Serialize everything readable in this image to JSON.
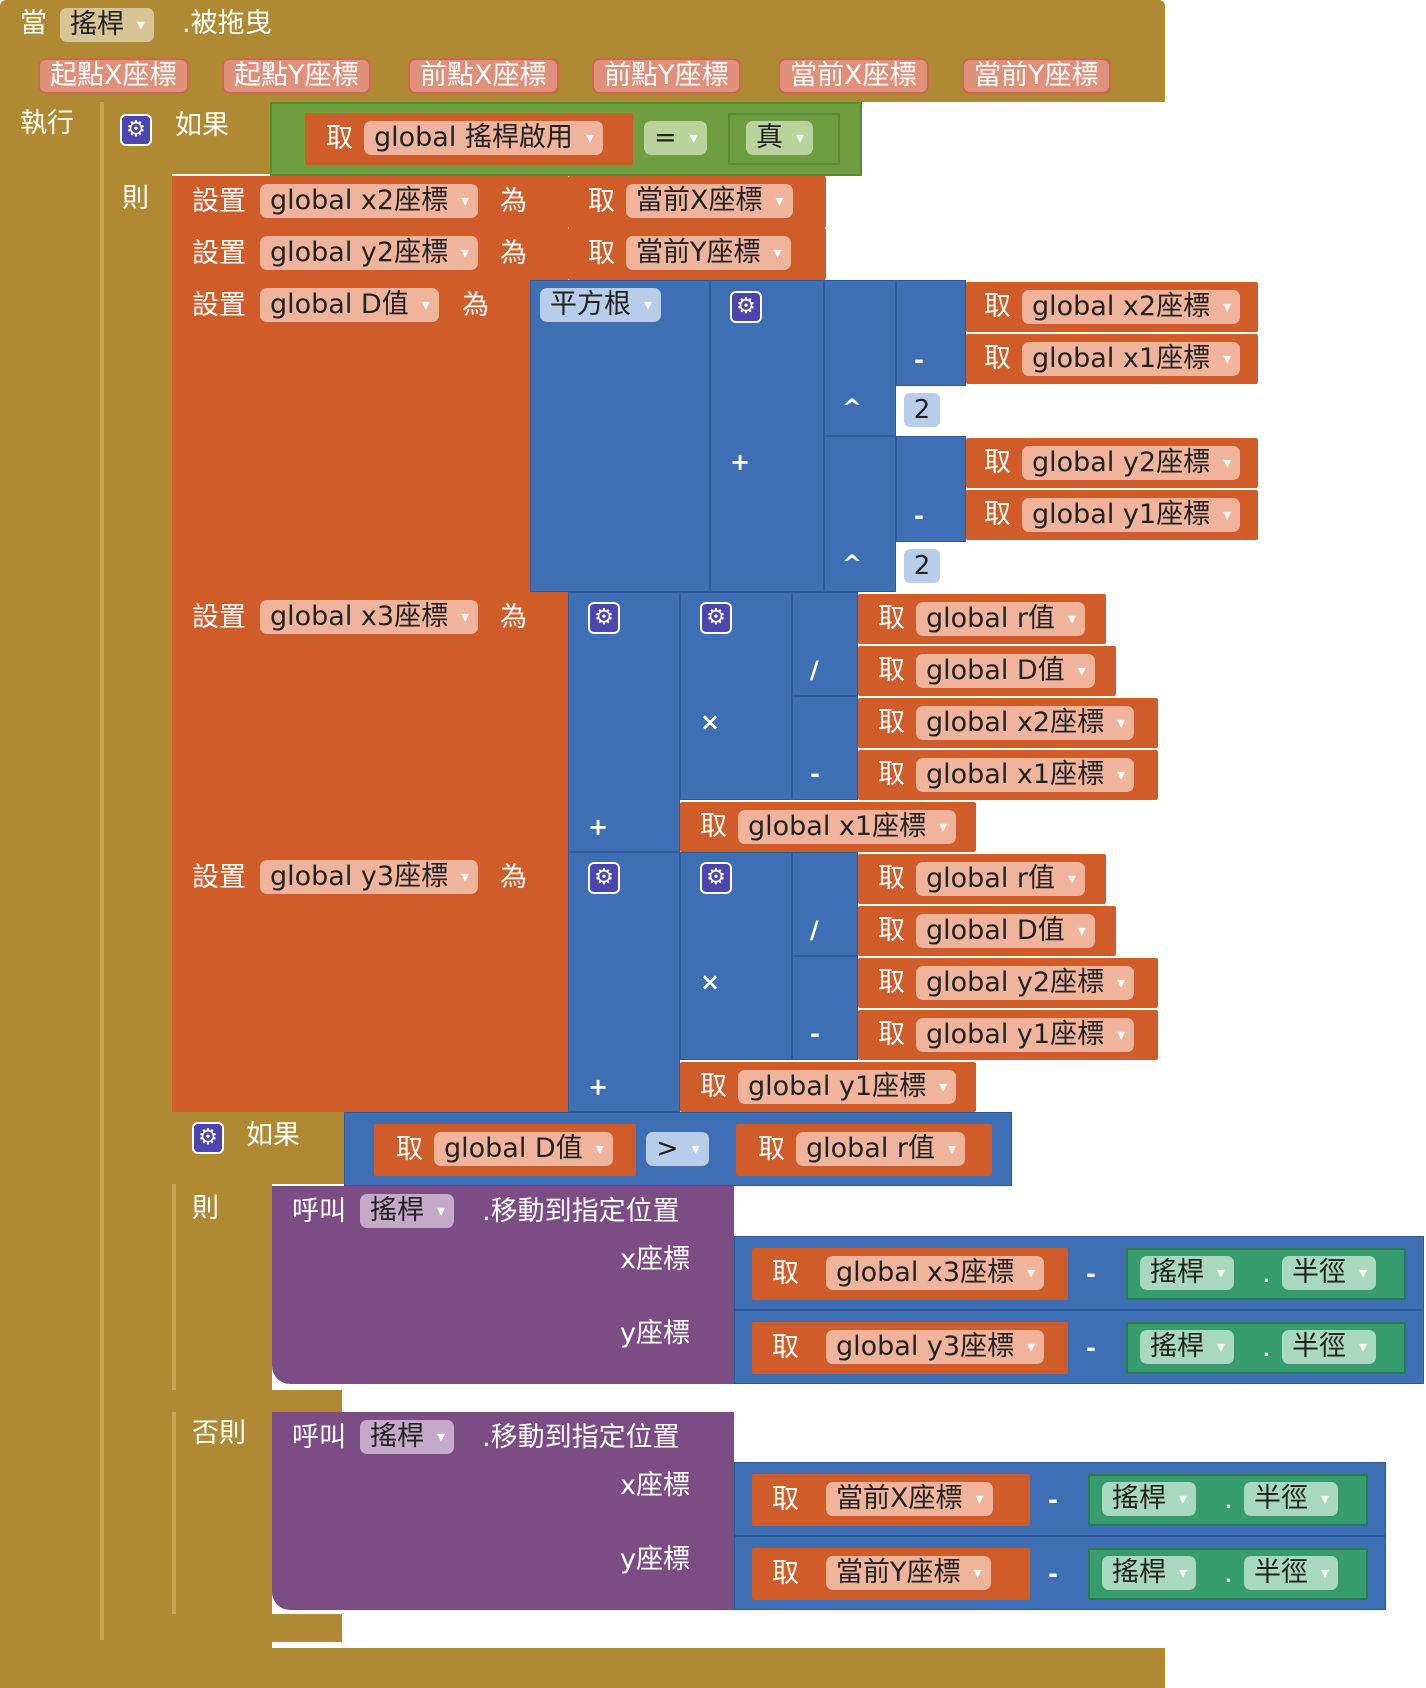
{
  "event": {
    "when_label": "當",
    "component": "搖桿",
    "event_name": ".被拖曳",
    "params": [
      "起點X座標",
      "起點Y座標",
      "前點X座標",
      "前點Y座標",
      "當前X座標",
      "當前Y座標"
    ],
    "do_label": "執行"
  },
  "kw": {
    "if": "如果",
    "then": "則",
    "else": "否則",
    "get": "取",
    "set": "設置",
    "to": "為",
    "call": "呼叫",
    "sqrt": "平方根",
    "true": "真",
    "eq": "=",
    "gt": ">",
    "minus": "-",
    "plus": "+",
    "times": "×",
    "divide": "/",
    "pow": "^",
    "dot": "."
  },
  "vars": {
    "enabled": "global 搖桿啟用",
    "x1": "global x1座標",
    "y1": "global y1座標",
    "x2": "global x2座標",
    "y2": "global y2座標",
    "x3": "global x3座標",
    "y3": "global y3座標",
    "D": "global D值",
    "r": "global r值"
  },
  "args": {
    "curX": "當前X座標",
    "curY": "當前Y座標"
  },
  "numbers": {
    "two": "2"
  },
  "call": {
    "component": "搖桿",
    "method": ".移動到指定位置",
    "x_label": "x座標",
    "y_label": "y座標",
    "prop": "半徑"
  },
  "colors": {
    "event": "#b08a33",
    "logic": "#6e9e3f",
    "variable": "#d05c2a",
    "math": "#3e6eb4",
    "procedure": "#7b4d84",
    "component": "#379c6c"
  }
}
